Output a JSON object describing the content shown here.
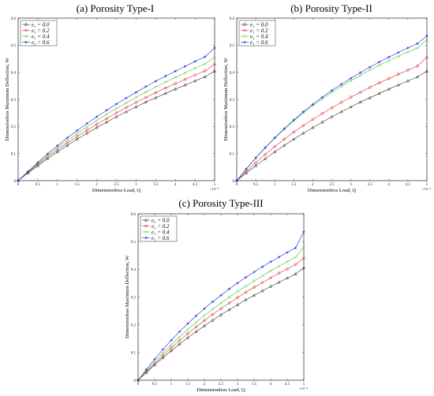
{
  "chart_data": [
    {
      "type": "line",
      "title": "(a) Porosity Type-I",
      "xlabel": "Dimensionless Load, Q",
      "ylabel": "Dimensionless Maximum Deflection, W",
      "x_exponent_label": "×10⁻⁴",
      "xlim": [
        0,
        5
      ],
      "ylim": [
        0,
        0.6
      ],
      "xticks": [
        "0",
        "0.5",
        "1",
        "1.5",
        "2",
        "2.5",
        "3",
        "3.5",
        "4",
        "4.5",
        "5"
      ],
      "yticks": [
        "0",
        "0.1",
        "0.2",
        "0.3",
        "0.4",
        "0.5",
        "0.6"
      ],
      "legend_position": "top-left",
      "grid": false,
      "x": [
        0,
        0.25,
        0.5,
        0.75,
        1,
        1.25,
        1.5,
        1.75,
        2,
        2.25,
        2.5,
        2.75,
        3,
        3.25,
        3.5,
        3.75,
        4,
        4.25,
        4.5,
        4.75,
        5
      ],
      "series": [
        {
          "name": "e₁ = 0.0",
          "color": "#333333",
          "marker": "triangle",
          "values": [
            0,
            0.028,
            0.055,
            0.081,
            0.106,
            0.13,
            0.153,
            0.175,
            0.196,
            0.216,
            0.236,
            0.254,
            0.272,
            0.29,
            0.306,
            0.322,
            0.338,
            0.353,
            0.368,
            0.383,
            0.405
          ]
        },
        {
          "name": "e₁ = 0.2",
          "color": "#e03030",
          "marker": "circle",
          "values": [
            0,
            0.03,
            0.059,
            0.087,
            0.114,
            0.139,
            0.163,
            0.186,
            0.208,
            0.229,
            0.25,
            0.27,
            0.289,
            0.307,
            0.325,
            0.342,
            0.358,
            0.374,
            0.39,
            0.405,
            0.43
          ]
        },
        {
          "name": "e₁ = 0.4",
          "color": "#33cc33",
          "marker": "x",
          "values": [
            0,
            0.032,
            0.063,
            0.093,
            0.121,
            0.148,
            0.174,
            0.198,
            0.222,
            0.245,
            0.266,
            0.287,
            0.307,
            0.327,
            0.346,
            0.364,
            0.381,
            0.398,
            0.415,
            0.431,
            0.455
          ]
        },
        {
          "name": "e₁ = 0.6",
          "color": "#2222dd",
          "marker": "asterisk",
          "values": [
            0,
            0.034,
            0.067,
            0.099,
            0.129,
            0.158,
            0.185,
            0.211,
            0.236,
            0.26,
            0.283,
            0.305,
            0.326,
            0.347,
            0.367,
            0.386,
            0.404,
            0.422,
            0.44,
            0.457,
            0.49
          ]
        }
      ]
    },
    {
      "type": "line",
      "title": "(b) Porosity Type-II",
      "xlabel": "Dimensionless Load, Q",
      "ylabel": "Dimensionless Maximum Deflection, W",
      "x_exponent_label": "×10⁻⁴",
      "xlim": [
        0,
        5
      ],
      "ylim": [
        0,
        0.6
      ],
      "xticks": [
        "0",
        "0.5",
        "1",
        "1.5",
        "2",
        "2.5",
        "3",
        "3.5",
        "4",
        "4.5",
        "5"
      ],
      "yticks": [
        "0",
        "0.1",
        "0.2",
        "0.3",
        "0.4",
        "0.5",
        "0.6"
      ],
      "legend_position": "top-left",
      "grid": false,
      "x": [
        0,
        0.25,
        0.5,
        0.75,
        1,
        1.25,
        1.5,
        1.75,
        2,
        2.25,
        2.5,
        2.75,
        3,
        3.25,
        3.5,
        3.75,
        4,
        4.25,
        4.5,
        4.75,
        5
      ],
      "series": [
        {
          "name": "e₁ = 0.0",
          "color": "#333333",
          "marker": "triangle",
          "values": [
            0,
            0.028,
            0.055,
            0.081,
            0.106,
            0.13,
            0.153,
            0.175,
            0.196,
            0.216,
            0.236,
            0.254,
            0.272,
            0.29,
            0.306,
            0.322,
            0.338,
            0.353,
            0.368,
            0.383,
            0.405
          ]
        },
        {
          "name": "e₁ = 0.2",
          "color": "#e03030",
          "marker": "circle",
          "values": [
            0,
            0.034,
            0.066,
            0.097,
            0.126,
            0.153,
            0.179,
            0.203,
            0.226,
            0.248,
            0.269,
            0.289,
            0.308,
            0.326,
            0.344,
            0.361,
            0.377,
            0.393,
            0.408,
            0.423,
            0.455
          ]
        },
        {
          "name": "e₁ = 0.4",
          "color": "#33cc33",
          "marker": "x",
          "values": [
            0,
            0.042,
            0.083,
            0.121,
            0.157,
            0.19,
            0.221,
            0.25,
            0.277,
            0.302,
            0.326,
            0.348,
            0.369,
            0.389,
            0.408,
            0.426,
            0.443,
            0.459,
            0.475,
            0.49,
            0.52
          ]
        },
        {
          "name": "e₁ = 0.6",
          "color": "#2222dd",
          "marker": "asterisk",
          "values": [
            0,
            0.043,
            0.084,
            0.122,
            0.158,
            0.192,
            0.224,
            0.254,
            0.282,
            0.308,
            0.333,
            0.356,
            0.378,
            0.399,
            0.419,
            0.438,
            0.456,
            0.473,
            0.49,
            0.506,
            0.535
          ]
        }
      ]
    },
    {
      "type": "line",
      "title": "(c) Porosity Type-III",
      "xlabel": "Dimensionless Load, Q",
      "ylabel": "Dimensionless Maximum Deflection, W",
      "x_exponent_label": "×10⁻⁴",
      "xlim": [
        0,
        5
      ],
      "ylim": [
        0,
        0.6
      ],
      "xticks": [
        "0",
        "0.5",
        "1",
        "1.5",
        "2",
        "2.5",
        "3",
        "3.5",
        "4",
        "4.5",
        "5"
      ],
      "yticks": [
        "0",
        "0.1",
        "0.2",
        "0.3",
        "0.4",
        "0.5",
        "0.6"
      ],
      "legend_position": "top-left",
      "grid": false,
      "x": [
        0,
        0.25,
        0.5,
        0.75,
        1,
        1.25,
        1.5,
        1.75,
        2,
        2.25,
        2.5,
        2.75,
        3,
        3.25,
        3.5,
        3.75,
        4,
        4.25,
        4.5,
        4.75,
        5
      ],
      "series": [
        {
          "name": "e₁ = 0.0",
          "color": "#333333",
          "marker": "triangle",
          "values": [
            0,
            0.028,
            0.055,
            0.081,
            0.106,
            0.13,
            0.153,
            0.175,
            0.196,
            0.216,
            0.236,
            0.254,
            0.272,
            0.29,
            0.306,
            0.322,
            0.338,
            0.353,
            0.368,
            0.383,
            0.405
          ]
        },
        {
          "name": "e₁ = 0.2",
          "color": "#e03030",
          "marker": "circle",
          "values": [
            0,
            0.03,
            0.06,
            0.089,
            0.117,
            0.143,
            0.168,
            0.192,
            0.215,
            0.237,
            0.258,
            0.278,
            0.298,
            0.317,
            0.335,
            0.352,
            0.369,
            0.386,
            0.401,
            0.417,
            0.44
          ]
        },
        {
          "name": "e₁ = 0.4",
          "color": "#33cc33",
          "marker": "x",
          "values": [
            0,
            0.034,
            0.067,
            0.098,
            0.128,
            0.156,
            0.183,
            0.209,
            0.233,
            0.256,
            0.278,
            0.299,
            0.32,
            0.339,
            0.358,
            0.376,
            0.394,
            0.411,
            0.427,
            0.443,
            0.48
          ]
        },
        {
          "name": "e₁ = 0.6",
          "color": "#2222dd",
          "marker": "asterisk",
          "values": [
            0,
            0.039,
            0.076,
            0.111,
            0.144,
            0.175,
            0.204,
            0.232,
            0.258,
            0.283,
            0.306,
            0.329,
            0.35,
            0.371,
            0.39,
            0.409,
            0.427,
            0.444,
            0.461,
            0.477,
            0.535
          ]
        }
      ]
    }
  ]
}
